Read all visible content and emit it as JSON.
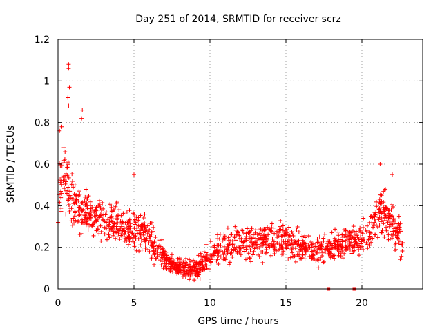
{
  "chart_data": {
    "type": "scatter",
    "title": "Day 251 of 2014, SRMTID for receiver scrz",
    "xlabel": "GPS time / hours",
    "ylabel": "SRMTID / TECUs",
    "xlim": [
      0,
      24
    ],
    "ylim": [
      0,
      1.2
    ],
    "x_ticks": [
      0,
      5,
      10,
      15,
      20
    ],
    "y_ticks": [
      0,
      0.2,
      0.4,
      0.6,
      0.8,
      1,
      1.2
    ],
    "x_tick_labels": [
      "0",
      "5",
      "10",
      "15",
      "20"
    ],
    "y_tick_labels": [
      "0",
      "0.2",
      "0.4",
      "0.6",
      "0.8",
      "1",
      "1.2"
    ],
    "grid": true,
    "marker": "+",
    "series_color": "#ff0000",
    "profile": {
      "note": "approximate envelope of the dense per-satellite point cloud (hours, TECU)",
      "x": [
        0,
        0.3,
        0.6,
        0.8,
        1.2,
        1.6,
        2.0,
        3.0,
        4.0,
        5.0,
        6.0,
        7.0,
        8.0,
        9.0,
        9.5,
        10.0,
        11.0,
        12.0,
        13.0,
        14.0,
        15.0,
        16.0,
        17.0,
        18.0,
        19.0,
        20.0,
        20.5,
        21.0,
        21.5,
        22.0,
        22.7
      ],
      "center": [
        0.45,
        0.55,
        0.5,
        0.42,
        0.4,
        0.38,
        0.36,
        0.33,
        0.3,
        0.28,
        0.25,
        0.14,
        0.1,
        0.09,
        0.12,
        0.16,
        0.2,
        0.22,
        0.23,
        0.22,
        0.24,
        0.2,
        0.17,
        0.2,
        0.22,
        0.24,
        0.28,
        0.35,
        0.38,
        0.3,
        0.22
      ],
      "spread": [
        0.12,
        0.18,
        0.16,
        0.14,
        0.12,
        0.11,
        0.1,
        0.1,
        0.1,
        0.1,
        0.1,
        0.06,
        0.05,
        0.05,
        0.06,
        0.07,
        0.08,
        0.09,
        0.09,
        0.09,
        0.09,
        0.08,
        0.07,
        0.08,
        0.08,
        0.08,
        0.1,
        0.12,
        0.12,
        0.11,
        0.1
      ]
    },
    "notable_points": [
      {
        "x": 0.7,
        "y": 1.08
      },
      {
        "x": 0.7,
        "y": 1.06
      },
      {
        "x": 0.75,
        "y": 0.97
      },
      {
        "x": 0.65,
        "y": 0.92
      },
      {
        "x": 0.7,
        "y": 0.88
      },
      {
        "x": 1.6,
        "y": 0.86
      },
      {
        "x": 1.55,
        "y": 0.82
      },
      {
        "x": 0.25,
        "y": 0.78
      },
      {
        "x": 0.1,
        "y": 0.76
      },
      {
        "x": 5.0,
        "y": 0.55
      },
      {
        "x": 21.2,
        "y": 0.6
      },
      {
        "x": 22.0,
        "y": 0.55
      },
      {
        "x": 17.8,
        "y": 0.0
      },
      {
        "x": 19.5,
        "y": 0.0
      }
    ]
  }
}
